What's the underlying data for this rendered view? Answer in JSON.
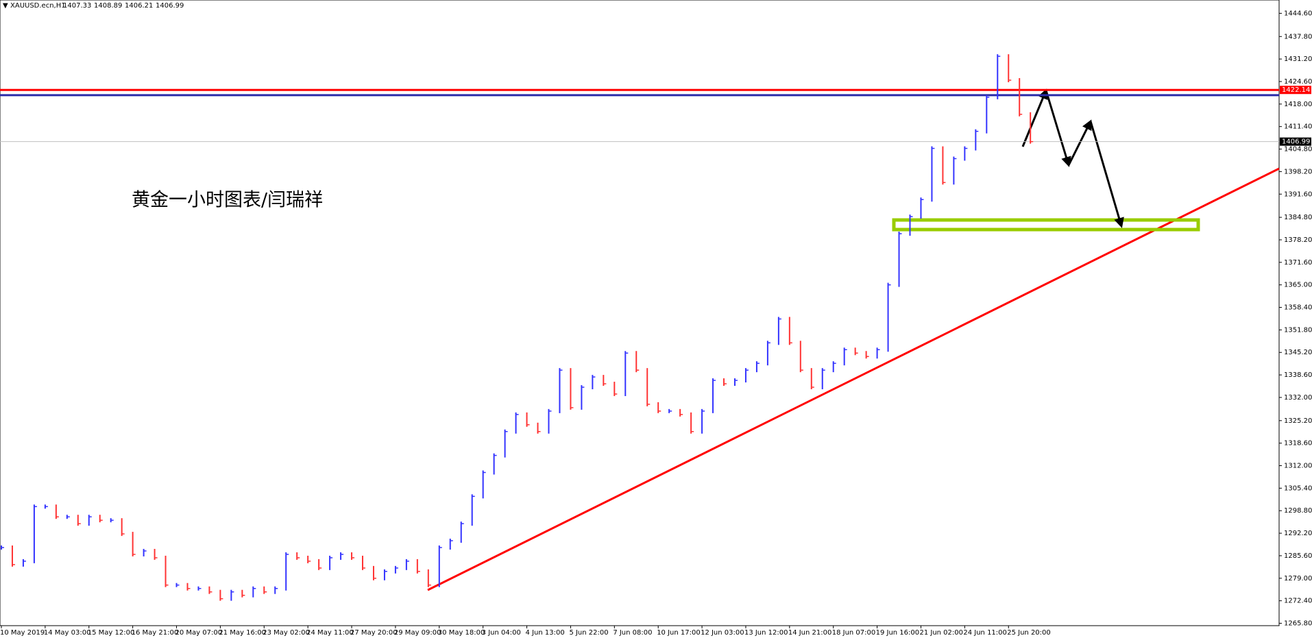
{
  "chart_data": {
    "type": "price-bars",
    "symbol": "XAUUSD.ecn,H1",
    "ohlc_header": [
      1407.33,
      1408.89,
      1406.21,
      1406.99
    ],
    "annotation": "黄金一小时图表/闫瑞祥",
    "up_color": "#3333ff",
    "down_color": "#ff3333",
    "categories": [
      "10 May 2019",
      null,
      null,
      null,
      "14 May 03:00",
      null,
      null,
      null,
      "15 May 12:00",
      null,
      null,
      null,
      "16 May 21:00",
      null,
      null,
      null,
      "20 May 07:00",
      null,
      null,
      null,
      "21 May 16:00",
      null,
      null,
      null,
      "23 May 02:00",
      null,
      null,
      null,
      "24 May 11:00",
      null,
      null,
      null,
      "27 May 20:00",
      null,
      null,
      null,
      "29 May 09:00",
      null,
      null,
      null,
      "30 May 18:00",
      null,
      null,
      null,
      "3 Jun 04:00",
      null,
      null,
      null,
      "4 Jun 13:00",
      null,
      null,
      null,
      "5 Jun 22:00",
      null,
      null,
      null,
      "7 Jun 08:00",
      null,
      null,
      null,
      "10 Jun 17:00",
      null,
      null,
      null,
      "12 Jun 03:00",
      null,
      null,
      null,
      "13 Jun 12:00",
      null,
      null,
      null,
      "14 Jun 21:00",
      null,
      null,
      null,
      "18 Jun 07:00",
      null,
      null,
      null,
      "19 Jun 16:00",
      null,
      null,
      null,
      "21 Jun 02:00",
      null,
      null,
      null,
      "24 Jun 11:00",
      null,
      null,
      null,
      "25 Jun 20:00",
      null,
      null
    ],
    "values": [
      1288,
      1283,
      1284,
      1300,
      1300,
      1297,
      1297,
      1295,
      1297,
      1296,
      1296,
      1292,
      1286,
      1287,
      1285,
      1277,
      1277,
      1276,
      1276,
      1275,
      1273,
      1275,
      1274,
      1276,
      1275,
      1276,
      1286,
      1285,
      1284,
      1282,
      1285,
      1286,
      1285,
      1282,
      1279,
      1281,
      1282,
      1284,
      1281,
      1277,
      1288,
      1290,
      1295,
      1303,
      1310,
      1315,
      1322,
      1327,
      1324,
      1322,
      1328,
      1340,
      1329,
      1335,
      1338,
      1336,
      1333,
      1345,
      1340,
      1330,
      1328,
      1328,
      1327,
      1322,
      1328,
      1337,
      1336,
      1337,
      1340,
      1342,
      1348,
      1355,
      1348,
      1340,
      1335,
      1340,
      1342,
      1346,
      1345,
      1344,
      1346,
      1365,
      1380,
      1385,
      1390,
      1405,
      1395,
      1402,
      1405,
      1410,
      1420,
      1432,
      1425,
      1415,
      1406.99
    ],
    "ylim": [
      1265.1,
      1448.5
    ],
    "yticks": [
      {
        "value": 1265.8,
        "label": "1265.80"
      },
      {
        "value": 1272.4,
        "label": "1272.40"
      },
      {
        "value": 1279,
        "label": "1279.00"
      },
      {
        "value": 1285.6,
        "label": "1285.60"
      },
      {
        "value": 1292.2,
        "label": "1292.20"
      },
      {
        "value": 1298.8,
        "label": "1298.80"
      },
      {
        "value": 1305.4,
        "label": "1305.40"
      },
      {
        "value": 1312,
        "label": "1312.00"
      },
      {
        "value": 1318.6,
        "label": "1318.60"
      },
      {
        "value": 1325.2,
        "label": "1325.20"
      },
      {
        "value": 1332,
        "label": "1332.00"
      },
      {
        "value": 1338.6,
        "label": "1338.60"
      },
      {
        "value": 1345.2,
        "label": "1345.20"
      },
      {
        "value": 1351.8,
        "label": "1351.80"
      },
      {
        "value": 1358.4,
        "label": "1358.40"
      },
      {
        "value": 1365,
        "label": "1365.00"
      },
      {
        "value": 1371.6,
        "label": "1371.60"
      },
      {
        "value": 1378.2,
        "label": "1378.20"
      },
      {
        "value": 1384.8,
        "label": "1384.80"
      },
      {
        "value": 1391.6,
        "label": "1391.60"
      },
      {
        "value": 1398.2,
        "label": "1398.20"
      },
      {
        "value": 1404.8,
        "label": "1404.80"
      },
      {
        "value": 1411.4,
        "label": "1411.40"
      },
      {
        "value": 1418,
        "label": "1418.00"
      },
      {
        "value": 1424.6,
        "label": "1424.60"
      },
      {
        "value": 1431.2,
        "label": "1431.20"
      },
      {
        "value": 1437.8,
        "label": "1437.80"
      },
      {
        "value": 1444.6,
        "label": "1444.60"
      }
    ],
    "hlines": [
      {
        "value": 1420.6,
        "color": "#2a2aa8"
      },
      {
        "value": 1422.14,
        "color": "#ff0000",
        "label": "1422.14"
      }
    ],
    "current_price": 1406.99
  }
}
